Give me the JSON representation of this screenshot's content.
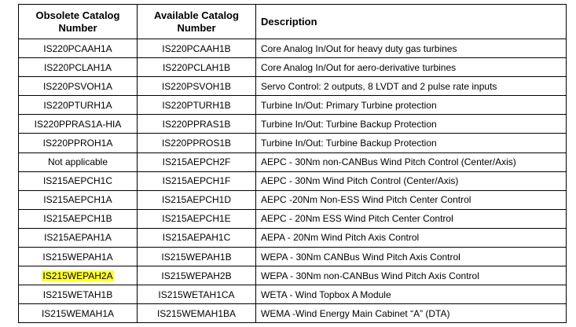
{
  "table": {
    "headers": {
      "obsolete_line1": "Obsolete Catalog",
      "obsolete_line2": "Number",
      "available_line1": "Available Catalog",
      "available_line2": "Number",
      "description": "Description"
    },
    "rows": [
      {
        "obsolete": "IS220PCAAH1A",
        "available": "IS220PCAAH1B",
        "description": "Core Analog In/Out for heavy duty gas turbines"
      },
      {
        "obsolete": "IS220PCLAH1A",
        "available": "IS220PCLAH1B",
        "description": "Core Analog In/Out for aero-derivative turbines"
      },
      {
        "obsolete": "IS220PSVOH1A",
        "available": "IS220PSVOH1B",
        "description": "Servo Control: 2 outputs, 8 LVDT and 2 pulse rate inputs"
      },
      {
        "obsolete": "IS220PTURH1A",
        "available": "IS220PTURH1B",
        "description": "Turbine In/Out: Primary Turbine protection"
      },
      {
        "obsolete": "IS220PPRAS1A-HIA",
        "available": "IS220PPRAS1B",
        "description": "Turbine In/Out: Turbine Backup Protection"
      },
      {
        "obsolete": "IS220PPROH1A",
        "available": "IS220PPROS1B",
        "description": "Turbine In/Out: Turbine Backup Protection"
      },
      {
        "obsolete": "Not applicable",
        "available": "IS215AEPCH2F",
        "description": "AEPC - 30Nm non-CANBus Wind Pitch Control (Center/Axis)"
      },
      {
        "obsolete": "IS215AEPCH1C",
        "available": "IS215AEPCH1F",
        "description": "AEPC - 30Nm Wind Pitch Control (Center/Axis)"
      },
      {
        "obsolete": "IS215AEPCH1A",
        "available": "IS215AEPCH1D",
        "description": "AEPC -20Nm Non-ESS Wind Pitch Center Control"
      },
      {
        "obsolete": "IS215AEPCH1B",
        "available": "IS215AEPCH1E",
        "description": "AEPC - 20Nm ESS Wind Pitch Center Control"
      },
      {
        "obsolete": "IS215AEPAH1A",
        "available": "IS215AEPAH1C",
        "description": "AEPA - 20Nm Wind Pitch Axis Control"
      },
      {
        "obsolete": "IS215WEPAH1A",
        "available": "IS215WEPAH1B",
        "description": "WEPA - 30Nm CANBus Wind Pitch Axis Control"
      },
      {
        "obsolete": "IS215WEPAH2A",
        "available": "IS215WEPAH2B",
        "description": "WEPA - 30Nm non-CANBus Wind Pitch Axis Control",
        "highlighted": true
      },
      {
        "obsolete": "IS215WETAH1B",
        "available": "IS215WETAH1CA",
        "description": "WETA - Wind Topbox A Module"
      },
      {
        "obsolete": "IS215WEMAH1A",
        "available": "IS215WEMAH1BA",
        "description": "WEMA -Wind Energy Main Cabinet “A” (DTA)"
      }
    ]
  },
  "colors": {
    "highlight": "#ffff33",
    "border": "#000000",
    "text": "#000000"
  }
}
